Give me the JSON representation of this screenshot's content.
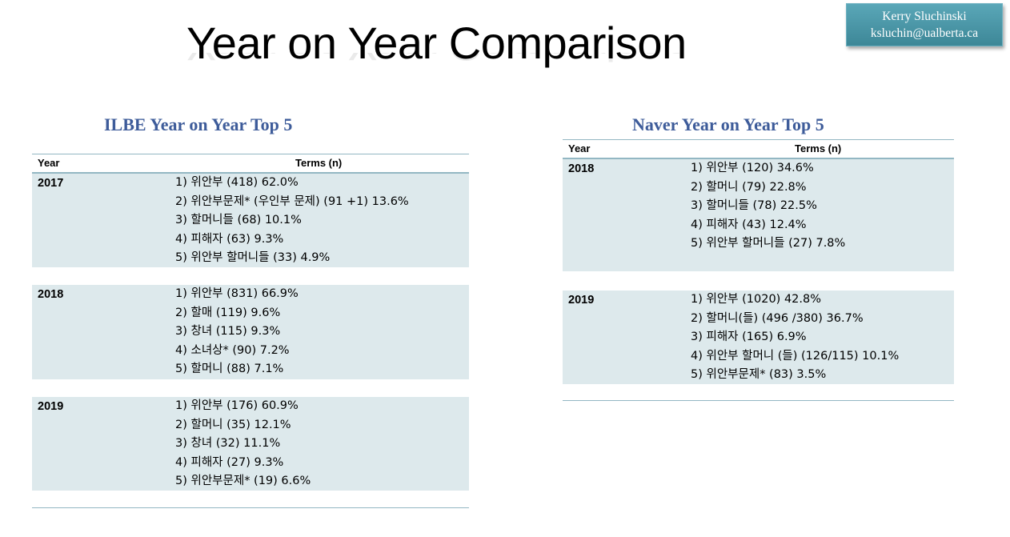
{
  "slide": {
    "title": "Year on Year Comparison",
    "author": {
      "name": "Kerry Sluchinski",
      "email": "ksluchin@ualberta.ca"
    }
  },
  "ilbe": {
    "title": "ILBE Year on Year Top 5",
    "header": {
      "year": "Year",
      "terms": "Terms (n)"
    },
    "rows": [
      {
        "year": "2017",
        "terms": [
          "1) 위안부 (418) 62.0%",
          "2) 위안부문제* (우인부 문제) (91 +1) 13.6%",
          "3) 할머니들 (68) 10.1%",
          "4) 피해자 (63) 9.3%",
          "5) 위안부 할머니들 (33) 4.9%"
        ]
      },
      {
        "year": "2018",
        "terms": [
          "1) 위안부 (831) 66.9%",
          "2) 할매 (119) 9.6%",
          "3) 창녀  (115) 9.3%",
          "4) 소녀상* (90) 7.2%",
          "5) 할머니 (88) 7.1%"
        ]
      },
      {
        "year": "2019",
        "terms": [
          "1) 위안부 (176) 60.9%",
          "2) 할머니 (35) 12.1%",
          "3) 창녀 (32) 11.1%",
          "4) 피해자 (27) 9.3%",
          "5) 위안부문제* (19) 6.6%"
        ]
      }
    ]
  },
  "naver": {
    "title": "Naver Year on Year Top 5",
    "header": {
      "year": "Year",
      "terms": "Terms (n)"
    },
    "rows": [
      {
        "year": "2018",
        "terms": [
          "1) 위안부 (120) 34.6%",
          "2) 할머니 (79) 22.8%",
          "3) 할머니들 (78)  22.5%",
          "4) 피해자 (43) 12.4%",
          "5) 위안부 할머니들  (27) 7.8%"
        ]
      },
      {
        "year": "2019",
        "terms": [
          "1) 위안부 (1020)  42.8%",
          "2) 할머니(들)  (496 /380)  36.7%",
          "3) 피해자 (165) 6.9%",
          "4) 위안부 할머니 (들) (126/115) 10.1%",
          "5) 위안부문제* (83) 3.5%"
        ]
      }
    ]
  }
}
